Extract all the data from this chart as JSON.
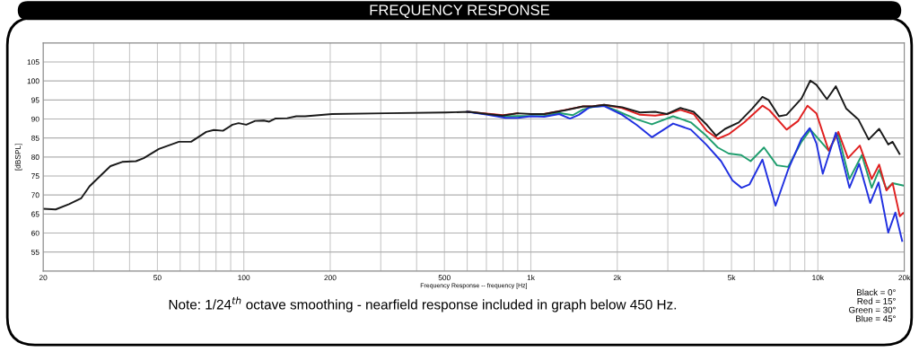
{
  "chart_data": {
    "type": "line",
    "title": "FREQUENCY RESPONSE",
    "xlabel": "Frequency Response -- frequency [Hz]",
    "ylabel": "[dBSPL]",
    "log": "x",
    "xlim": [
      20,
      20000
    ],
    "ylim": [
      50,
      110
    ],
    "xticks": [
      20,
      50,
      100,
      200,
      500,
      {
        "value": 1000,
        "label": "1k"
      },
      {
        "value": 2000,
        "label": "2k"
      },
      {
        "value": 5000,
        "label": "5k"
      },
      {
        "value": 10000,
        "label": "10k"
      },
      {
        "value": 20000,
        "label": "20k"
      }
    ],
    "yticks": [
      55,
      60,
      65,
      70,
      75,
      80,
      85,
      90,
      95,
      100,
      105
    ],
    "grid": true,
    "marker": "none",
    "line_style": "solid",
    "annotations": [
      "Note: 1/24$^{th}$ octave smoothing - nearfield response included in graph below 450 Hz.",
      "Black = 0°\nRed = 15°\nGreen = 30°\nBlue = 45°"
    ],
    "series": [
      {
        "color": "#1f9e6e",
        "x": [
          600,
          700,
          800,
          900,
          1000,
          1110,
          1250,
          1400,
          1520,
          1635,
          1800,
          1970,
          2340,
          2640,
          3130,
          3610,
          4030,
          4480,
          4890,
          5410,
          5830,
          6490,
          7200,
          7870,
          8770,
          9410,
          10900,
          11740,
          12880,
          14230,
          15400,
          16350,
          17330,
          18210,
          19800
        ],
        "values": [
          91.9,
          91.3,
          90.7,
          90.8,
          90.8,
          90.8,
          91.6,
          91.0,
          92.5,
          93.1,
          93.5,
          92.3,
          89.9,
          88.6,
          90.7,
          89.1,
          86.0,
          82.5,
          80.9,
          80.5,
          78.9,
          82.5,
          77.8,
          77.4,
          84.0,
          87.2,
          81.7,
          86.2,
          74.2,
          80.5,
          71.9,
          76.6,
          71.5,
          73.1,
          72.5
        ]
      },
      {
        "color": "#e02020",
        "x": [
          600,
          700,
          800,
          900,
          1000,
          1110,
          1320,
          1520,
          1635,
          1800,
          2080,
          2400,
          2710,
          2980,
          3320,
          3690,
          4110,
          4480,
          4890,
          5540,
          6410,
          6780,
          7780,
          8540,
          9200,
          9880,
          10900,
          11780,
          12730,
          14000,
          15400,
          16350,
          17330,
          18210,
          19300,
          19800
        ],
        "values": [
          91.9,
          91.4,
          91.0,
          91.5,
          null,
          91.3,
          92.4,
          93.3,
          93.3,
          93.7,
          92.9,
          91.1,
          90.9,
          91.3,
          92.4,
          91.3,
          86.8,
          84.8,
          86.0,
          89.1,
          93.5,
          92.3,
          87.2,
          89.5,
          93.5,
          91.5,
          81.7,
          86.6,
          79.7,
          83.0,
          74.2,
          78.0,
          71.2,
          73.1,
          64.4,
          65.2
        ]
      },
      {
        "color": "#2030e0",
        "x": [
          600,
          707,
          816,
          900,
          1000,
          1114,
          1255,
          1369,
          1470,
          1601,
          1800,
          2080,
          2340,
          2640,
          3130,
          3610,
          4080,
          4600,
          5040,
          5420,
          5780,
          6410,
          7120,
          7870,
          8770,
          9370,
          9880,
          10400,
          11550,
          12880,
          13930,
          15210,
          16270,
          17580,
          18620,
          19660
        ],
        "values": [
          91.9,
          91.1,
          90.3,
          90.3,
          90.7,
          90.6,
          91.3,
          90.1,
          91.1,
          93.1,
          93.4,
          91.1,
          88.4,
          85.2,
          88.8,
          87.2,
          83.3,
          78.9,
          73.8,
          71.9,
          72.8,
          79.3,
          67.2,
          76.6,
          84.8,
          87.6,
          83.6,
          75.6,
          86.4,
          71.9,
          78.2,
          67.9,
          73.3,
          60.1,
          65.4,
          57.9
        ]
      },
      {
        "color": "#1a1a1a",
        "x": [
          20,
          22.1,
          24.6,
          27.1,
          29.0,
          32.0,
          34.3,
          37.7,
          42.1,
          44.8,
          50.6,
          59.4,
          65.5,
          74.0,
          78.6,
          84.6,
          91.3,
          95.9,
          102,
          109.5,
          117.4,
          122.6,
          128.6,
          141.6,
          152.3,
          163.6,
          203,
          312,
          505,
          611,
          707,
          797,
          898,
          1000,
          1114,
          1318,
          1521,
          1635,
          1800,
          2080,
          2400,
          2710,
          2980,
          3320,
          3690,
          4110,
          4420,
          4750,
          5300,
          5900,
          6410,
          6730,
          7320,
          7780,
          8770,
          9410,
          9880,
          10750,
          11550,
          12560,
          13830,
          15030,
          16350,
          17580,
          18210,
          19250
        ],
        "values": [
          66.4,
          66.2,
          67.6,
          69.1,
          72.3,
          75.4,
          77.6,
          78.7,
          78.9,
          79.7,
          82.1,
          84.0,
          84.0,
          86.6,
          87.1,
          86.9,
          88.5,
          88.9,
          88.5,
          89.5,
          89.6,
          89.3,
          90.1,
          90.2,
          90.7,
          90.7,
          91.3,
          91.5,
          91.7,
          91.9,
          91.3,
          90.9,
          91.5,
          91.3,
          91.3,
          92.3,
          93.3,
          93.3,
          93.7,
          93.1,
          91.7,
          91.9,
          91.3,
          92.9,
          91.9,
          88.4,
          85.6,
          87.4,
          89.1,
          92.7,
          95.8,
          95.0,
          90.7,
          91.1,
          95.4,
          100.1,
          99.0,
          95.2,
          98.6,
          92.7,
          89.9,
          84.6,
          87.4,
          83.3,
          84.0,
          80.8
        ]
      }
    ]
  }
}
